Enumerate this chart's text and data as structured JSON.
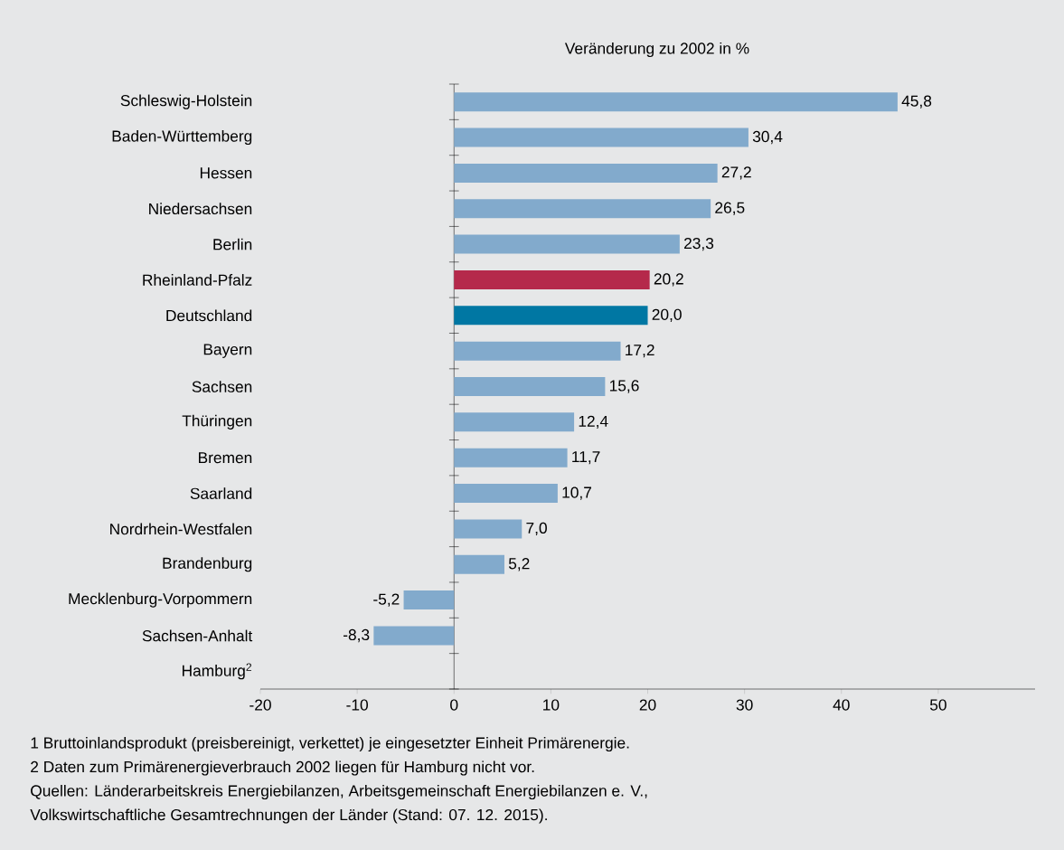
{
  "chart_data": {
    "type": "bar",
    "orientation": "horizontal",
    "title": "Veränderung zu 2002 in %",
    "categories": [
      "Schleswig-Holstein",
      "Baden-Württemberg",
      "Hessen",
      "Niedersachsen",
      "Berlin",
      "Rheinland-Pfalz",
      "Deutschland",
      "Bayern",
      "Sachsen",
      "Thüringen",
      "Bremen",
      "Saarland",
      "Nordrhein-Westfalen",
      "Brandenburg",
      "Mecklenburg-Vorpommern",
      "Sachsen-Anhalt",
      "Hamburg$^{2}$"
    ],
    "values": [
      45.8,
      30.4,
      27.2,
      26.5,
      23.3,
      20.2,
      20.0,
      17.2,
      15.6,
      12.4,
      11.7,
      10.7,
      7.0,
      5.2,
      -5.2,
      -8.3,
      null
    ],
    "value_labels": [
      "45,8",
      "30,4",
      "27,2",
      "26,5",
      "23,3",
      "20,2",
      "20,0",
      "17,2",
      "15,6",
      "12,4",
      "11,7",
      "10,7",
      "7,0",
      "5,2",
      "-5,2",
      "-8,3",
      null
    ],
    "colors": [
      "#82aacc",
      "#82aacc",
      "#82aacc",
      "#82aacc",
      "#82aacc",
      "#b5294b",
      "#0077a3",
      "#82aacc",
      "#82aacc",
      "#82aacc",
      "#82aacc",
      "#82aacc",
      "#82aacc",
      "#82aacc",
      "#82aacc",
      "#82aacc",
      "#82aacc"
    ],
    "xlim": [
      -20,
      60
    ],
    "xticks": [
      -20,
      -10,
      0,
      10,
      20,
      30,
      40,
      50
    ],
    "annotations": [
      "1 Bruttoinlandsprodukt (preisbereinigt, verkettet) je eingesetzter Einheit Primärenergie.",
      "2 Daten zum Primärenergieverbrauch 2002 liegen für Hamburg nicht vor.",
      "Quellen: Länderarbeitskreis Energiebilanzen, Arbeitsgemeinschaft Energiebilanzen  e. V.,",
      "Volkswirtschaftliche Gesamtrechnungen der Länder (Stand: 07. 12. 2015)."
    ]
  }
}
